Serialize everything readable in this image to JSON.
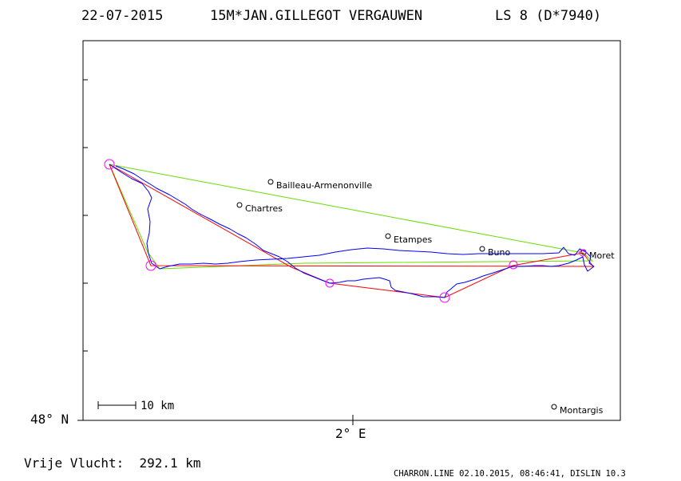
{
  "header": {
    "date": "22-07-2015",
    "pilot": "15M*JAN.GILLEGOT VERGAUWEN",
    "glider": "LS 8 (D*7940)"
  },
  "axes": {
    "lat_label": "48° N",
    "lon_label": "2° E"
  },
  "scale_bar": {
    "label": "10 km"
  },
  "towns": [
    {
      "name": "Bailleau-Armenonville"
    },
    {
      "name": "Chartres"
    },
    {
      "name": "Etampes"
    },
    {
      "name": "Buno"
    },
    {
      "name": "Moret"
    },
    {
      "name": "Montargis"
    }
  ],
  "footer": {
    "distance": "Vrije Vlucht:  292.1 km",
    "credit": "CHARRON.LINE 02.10.2015, 08:46:41, DISLIN 10.3"
  },
  "colors": {
    "frame": "#000000",
    "track": "#0000ff",
    "task_line": "#ff0000",
    "optimized_line": "#66dd00",
    "turnpoint": "#ff00ff"
  }
}
